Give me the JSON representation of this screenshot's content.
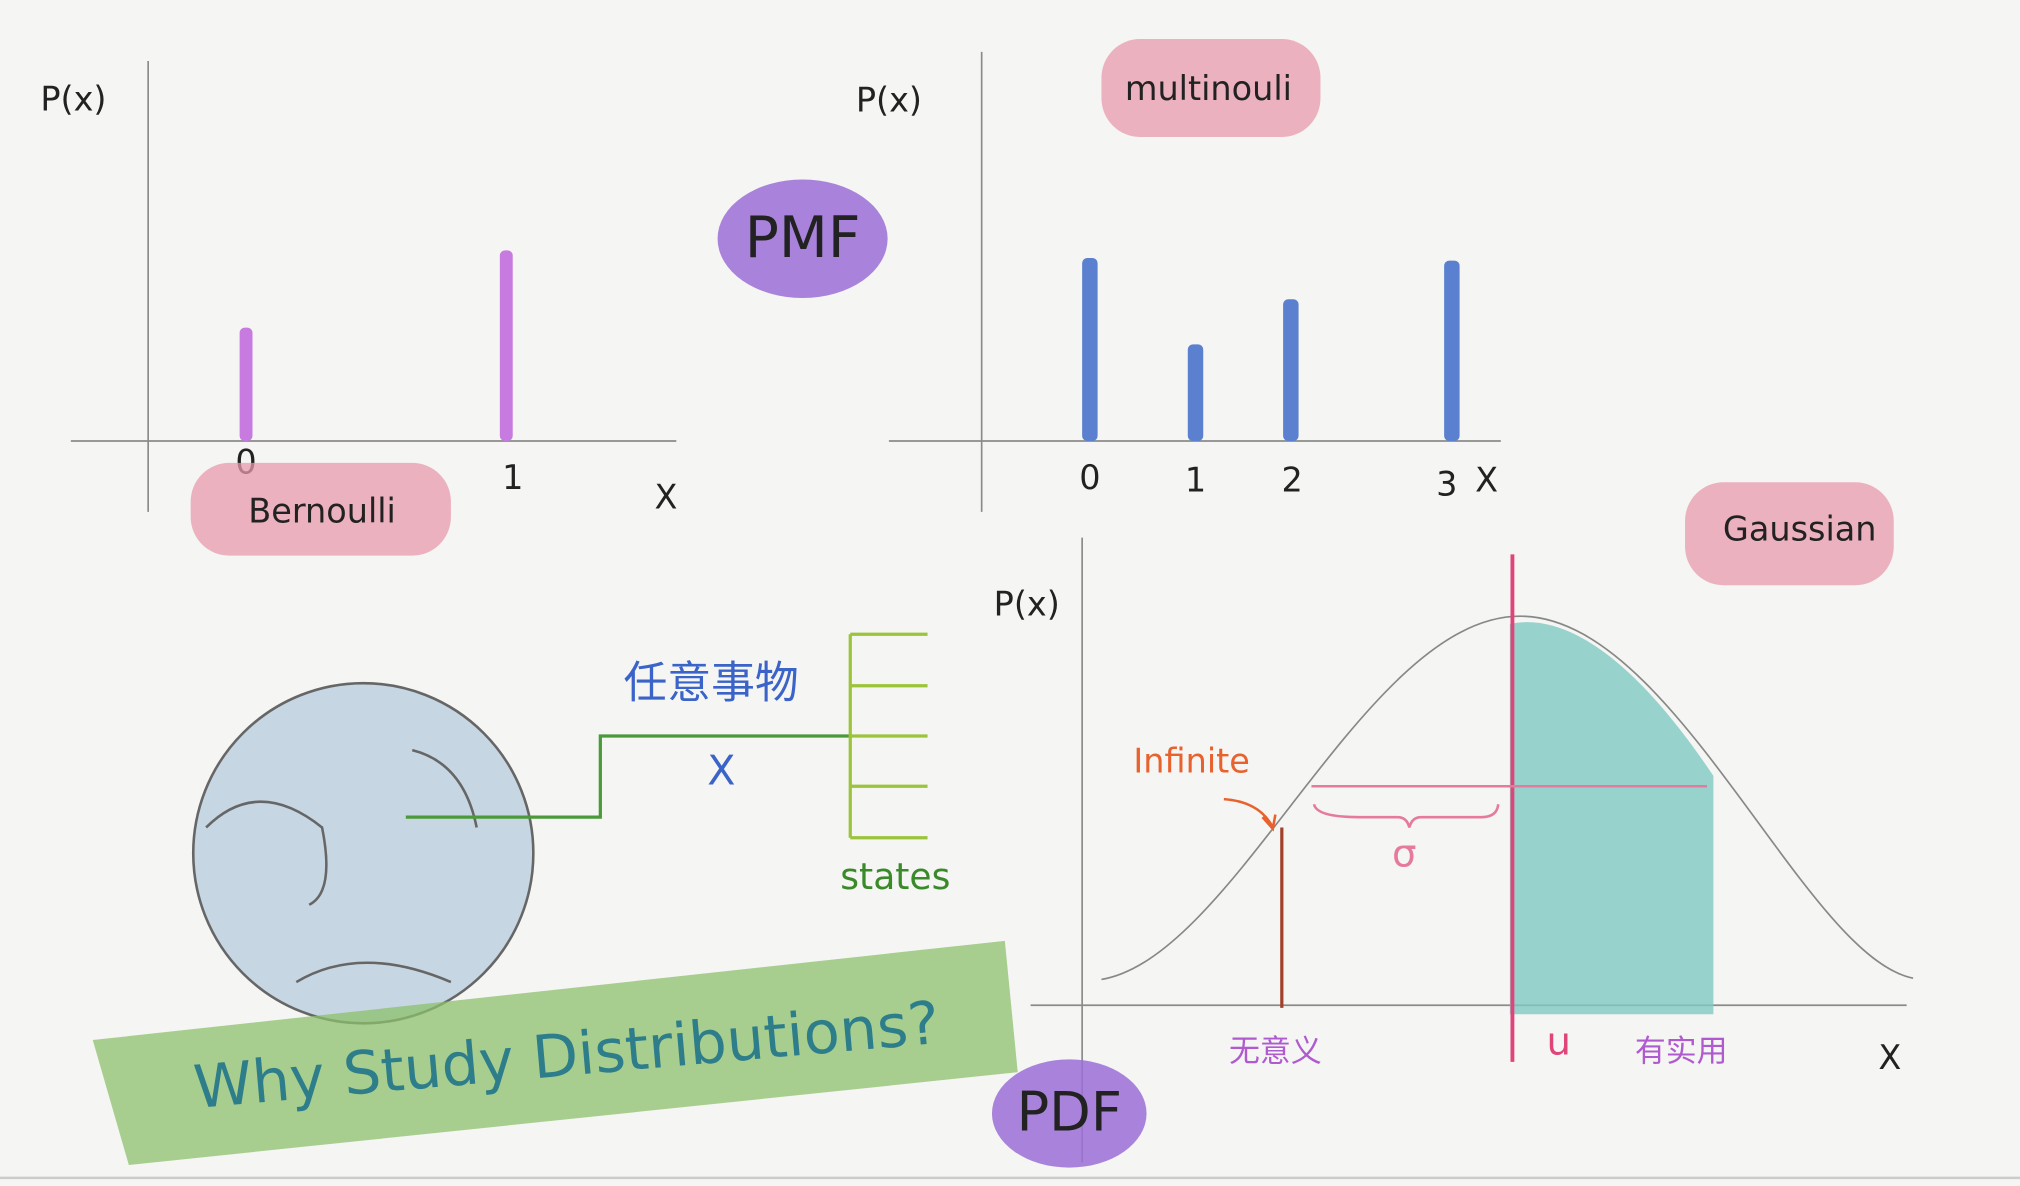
{
  "pmf_label": "PMF",
  "pdf_label": "PDF",
  "title": "Why Study Distributions?",
  "bernoulli": {
    "name": "Bernoulli",
    "y_label": "P(x)",
    "x_ticks": [
      "0",
      "1"
    ],
    "x_label": "X"
  },
  "multinoulli": {
    "name": "multinouli",
    "y_label": "P(x)",
    "x_ticks": [
      "0",
      "1",
      "2",
      "3"
    ],
    "x_label": "X"
  },
  "gaussian": {
    "name": "Gaussian",
    "y_label": "P(x)",
    "annotation": "Infinite",
    "sigma": "σ",
    "mu": "u",
    "left_note": "无意义",
    "right_note": "有实用",
    "x_label": "X"
  },
  "random_variable": {
    "label": "任意事物",
    "variable": "X",
    "states": "states"
  }
}
